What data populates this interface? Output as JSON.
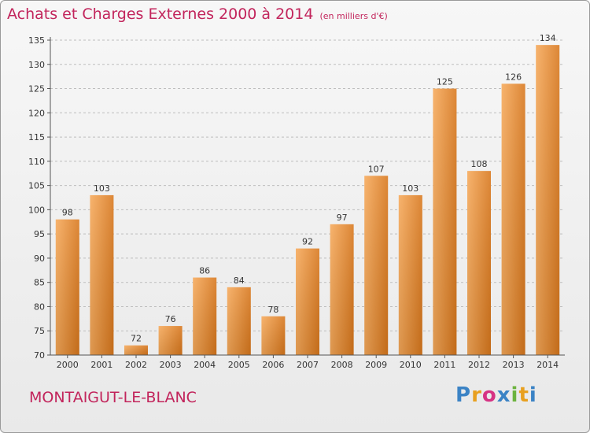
{
  "header": {
    "title": "Achats et Charges Externes 2000 à 2014",
    "subtitle": "(en milliers d'€)"
  },
  "footer": {
    "commune": "MONTAIGUT-LE-BLANC",
    "brand": "Proxiti",
    "brand_colors": [
      "#3b83c5",
      "#e8a020",
      "#d63384",
      "#3b83c5",
      "#6cb33e",
      "#e8a020",
      "#3b83c5"
    ]
  },
  "chart_data": {
    "type": "bar",
    "title": "Achats et Charges Externes 2000 à 2014",
    "subtitle": "(en milliers d'€)",
    "xlabel": "",
    "ylabel": "",
    "categories": [
      "2000",
      "2001",
      "2002",
      "2003",
      "2004",
      "2005",
      "2006",
      "2007",
      "2008",
      "2009",
      "2010",
      "2011",
      "2012",
      "2013",
      "2014"
    ],
    "values": [
      98,
      103,
      72,
      76,
      86,
      84,
      78,
      92,
      97,
      107,
      103,
      125,
      108,
      126,
      134
    ],
    "ylim": [
      70,
      135
    ],
    "yticks": [
      70,
      75,
      80,
      85,
      90,
      95,
      100,
      105,
      110,
      115,
      120,
      125,
      130,
      135
    ],
    "grid": true,
    "bar_color_top": "#f5a34e",
    "bar_color_bottom": "#d97a1e"
  }
}
